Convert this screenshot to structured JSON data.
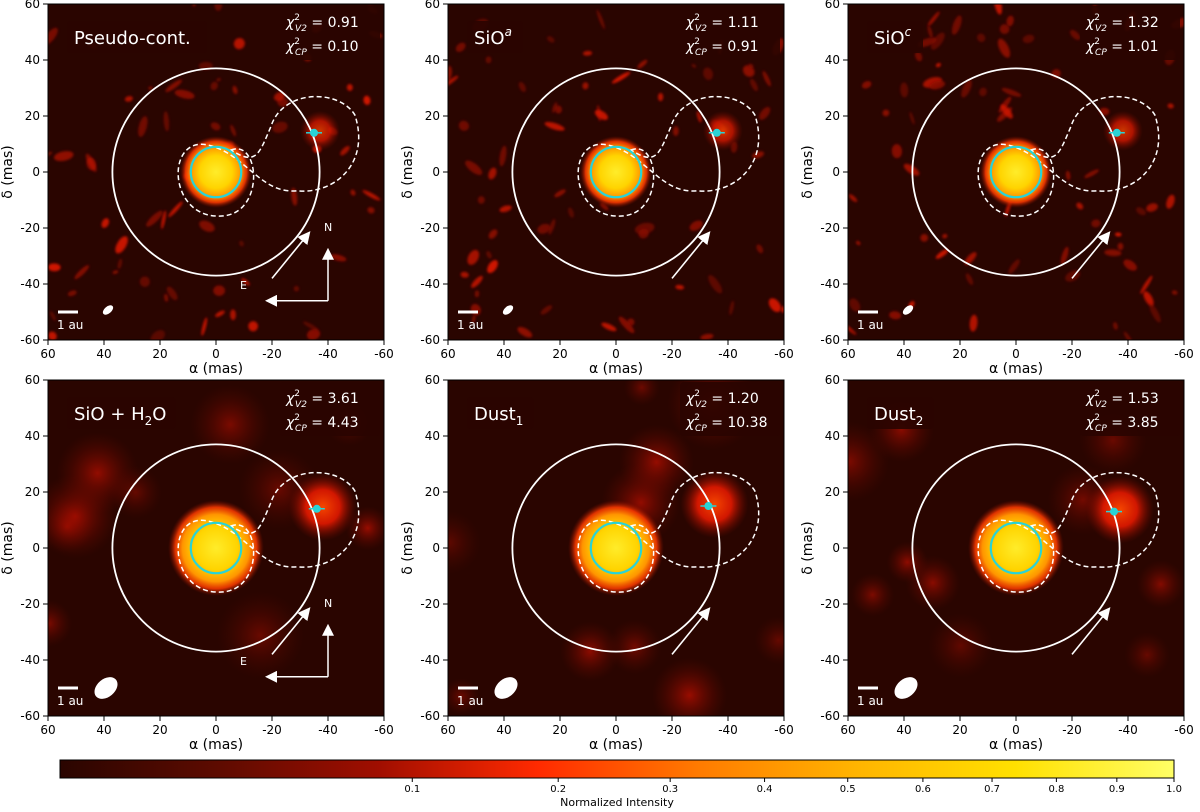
{
  "chart_data": {
    "type": "heatmap",
    "figure": "Reconstructed interferometric images",
    "x_axis": {
      "label": "α (mas)",
      "range": [
        60,
        -60
      ],
      "ticks": [
        60,
        40,
        20,
        0,
        -20,
        -40,
        -60
      ]
    },
    "y_axis": {
      "label": "δ (mas)",
      "range": [
        -60,
        60
      ],
      "ticks": [
        -60,
        -40,
        -20,
        0,
        20,
        40,
        60
      ]
    },
    "overlay": {
      "outer_circle_radius_mas": 37,
      "star_circle_radius_mas": 9,
      "companion_marker_mas": [
        -35,
        14
      ],
      "north_label": "N",
      "east_label": "E",
      "scale_bar_label": "1 au"
    },
    "panels": [
      {
        "title": "Pseudo-cont.",
        "title_sub": "",
        "title_sup": "",
        "chi2_v2": "0.91",
        "chi2_cp": "0.10",
        "style": "sharp",
        "star_center_mas": [
          0,
          0
        ],
        "companion_mas": [
          -35,
          14
        ],
        "show_compass": true
      },
      {
        "title": "SiO",
        "title_sub": "",
        "title_sup": "a",
        "chi2_v2": "1.11",
        "chi2_cp": "0.91",
        "style": "sharp",
        "star_center_mas": [
          0,
          0
        ],
        "companion_mas": [
          -36,
          14
        ],
        "show_compass": false
      },
      {
        "title": "SiO",
        "title_sub": "",
        "title_sup": "c",
        "chi2_v2": "1.32",
        "chi2_cp": "1.01",
        "style": "sharp",
        "star_center_mas": [
          0,
          0
        ],
        "companion_mas": [
          -36,
          14
        ],
        "show_compass": false
      },
      {
        "title": "SiO + H",
        "title_sub": "2",
        "title_sup": "",
        "title_tail": "O",
        "chi2_v2": "3.61",
        "chi2_cp": "4.43",
        "style": "smooth",
        "star_center_mas": [
          0,
          0
        ],
        "companion_mas": [
          -36,
          14
        ],
        "show_compass": true
      },
      {
        "title": "Dust",
        "title_sub": "1",
        "title_sup": "",
        "chi2_v2": "1.20",
        "chi2_cp": "10.38",
        "style": "smooth",
        "star_center_mas": [
          0,
          0
        ],
        "companion_mas": [
          -33,
          15
        ],
        "show_compass": false
      },
      {
        "title": "Dust",
        "title_sub": "2",
        "title_sup": "",
        "chi2_v2": "1.53",
        "chi2_cp": "3.85",
        "style": "smooth",
        "star_center_mas": [
          0,
          0
        ],
        "companion_mas": [
          -35,
          13
        ],
        "show_compass": false
      }
    ],
    "chi2_label": {
      "symbol": "χ",
      "sup": "2",
      "v2_sub": "V2",
      "cp_sub": "CP"
    },
    "colorbar": {
      "label": "Normalized Intensity",
      "ticks": [
        "0.1",
        "0.2",
        "0.3",
        "0.4",
        "0.5",
        "0.6",
        "0.7",
        "0.8",
        "0.9",
        "1.0"
      ],
      "tick_values": [
        0.1,
        0.2,
        0.3,
        0.4,
        0.5,
        0.6,
        0.7,
        0.8,
        0.9,
        1.0
      ],
      "scale": "power",
      "colormap": [
        "#2a0500",
        "#5e0b00",
        "#a00e00",
        "#ff2a00",
        "#ff7a00",
        "#ffb400",
        "#ffe000",
        "#ffff66"
      ]
    },
    "colors": {
      "circle": "#ffffff",
      "star_ring": "#29d3d6",
      "marker": "#29d3d6",
      "background": "#2a0500"
    }
  }
}
